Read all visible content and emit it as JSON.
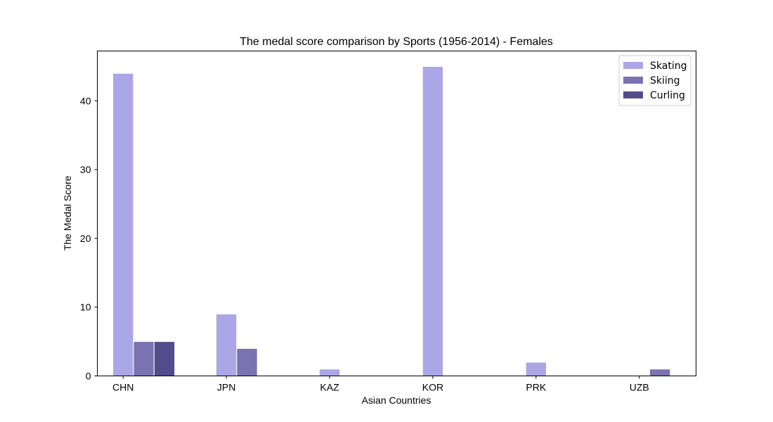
{
  "chart_data": {
    "type": "bar",
    "title": "The medal score comparison by Sports (1956-2014) - Females",
    "xlabel": "Asian Countries",
    "ylabel": "The Medal Score",
    "categories": [
      "CHN",
      "JPN",
      "KAZ",
      "KOR",
      "PRK",
      "UZB"
    ],
    "series": [
      {
        "name": "Skating",
        "color": "#aba6e6",
        "values": [
          44,
          9,
          1,
          45,
          2,
          0
        ]
      },
      {
        "name": "Skiing",
        "color": "#7a73b0",
        "values": [
          5,
          4,
          0,
          0,
          0,
          1
        ]
      },
      {
        "name": "Curling",
        "color": "#534c8a",
        "values": [
          5,
          0,
          0,
          0,
          0,
          0
        ]
      }
    ],
    "ylim": [
      0,
      47.25
    ],
    "yticks": [
      0,
      10,
      20,
      30,
      40
    ],
    "legend": "top-right",
    "grid": false
  }
}
